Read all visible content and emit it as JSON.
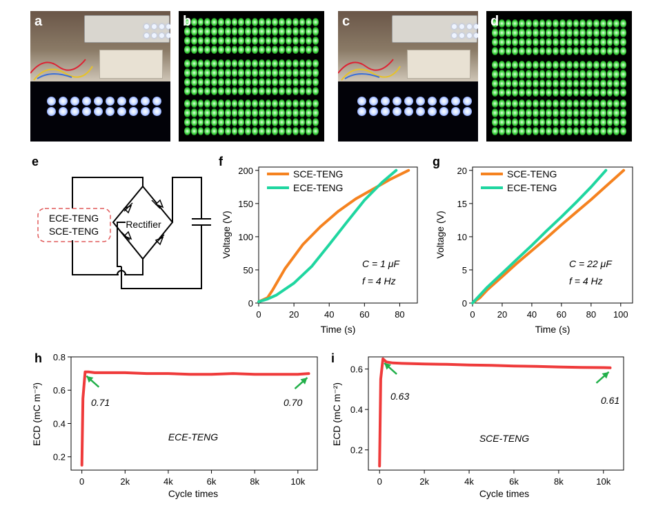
{
  "panels": {
    "a": {
      "label": "a"
    },
    "b": {
      "label": "b"
    },
    "c": {
      "label": "c"
    },
    "d": {
      "label": "d"
    },
    "e": {
      "label": "e"
    },
    "f": {
      "label": "f"
    },
    "g": {
      "label": "g"
    },
    "h": {
      "label": "h"
    },
    "i": {
      "label": "i"
    }
  },
  "circuit": {
    "teng_labels": [
      "ECE-TENG",
      "SCE-TENG"
    ],
    "rectifier_label": "Rectifier"
  },
  "colors": {
    "sce": "#f5821f",
    "ece": "#1fd6a0",
    "ecd": "#ef3b3b",
    "arrow": "#22b04a",
    "dashed_box": "#e05a5a",
    "blue_led": "#d6e4ff",
    "green_led": "#35d235"
  },
  "chart_data": [
    {
      "id": "f",
      "type": "line",
      "xlabel": "Time (s)",
      "ylabel": "Voltage (V)",
      "xlim": [
        0,
        90
      ],
      "ylim": [
        0,
        205
      ],
      "xticks": [
        0,
        20,
        40,
        60,
        80
      ],
      "yticks": [
        0,
        50,
        100,
        150,
        200
      ],
      "legend": "top-left",
      "annotations": [
        "C = 1 μF",
        "f = 4 Hz"
      ],
      "series": [
        {
          "name": "SCE-TENG",
          "color": "#f5821f",
          "x": [
            0,
            5,
            8,
            15,
            25,
            35,
            45,
            55,
            65,
            75,
            85
          ],
          "y": [
            2,
            8,
            20,
            52,
            88,
            115,
            138,
            157,
            172,
            187,
            200
          ]
        },
        {
          "name": "ECE-TENG",
          "color": "#1fd6a0",
          "x": [
            0,
            5,
            10,
            20,
            30,
            40,
            50,
            60,
            70,
            78
          ],
          "y": [
            2,
            6,
            12,
            30,
            55,
            88,
            122,
            155,
            182,
            200
          ]
        }
      ]
    },
    {
      "id": "g",
      "type": "line",
      "xlabel": "Time (s)",
      "ylabel": "Voltage (V)",
      "xlim": [
        0,
        108
      ],
      "ylim": [
        0,
        20.5
      ],
      "xticks": [
        0,
        20,
        40,
        60,
        80,
        100
      ],
      "yticks": [
        0,
        5,
        10,
        15,
        20
      ],
      "legend": "top-left",
      "annotations": [
        "C = 22 μF",
        "f = 4 Hz"
      ],
      "series": [
        {
          "name": "SCE-TENG",
          "color": "#f5821f",
          "x": [
            0,
            5,
            10,
            20,
            30,
            40,
            50,
            60,
            70,
            80,
            90,
            102
          ],
          "y": [
            0,
            0.8,
            2,
            4,
            6,
            7.9,
            9.8,
            11.8,
            13.7,
            15.6,
            17.6,
            20
          ]
        },
        {
          "name": "ECE-TENG",
          "color": "#1fd6a0",
          "x": [
            0,
            5,
            10,
            20,
            30,
            40,
            50,
            60,
            70,
            80,
            90
          ],
          "y": [
            0,
            1.2,
            2.4,
            4.5,
            6.6,
            8.7,
            10.9,
            13.0,
            15.2,
            17.5,
            20
          ]
        }
      ]
    },
    {
      "id": "h",
      "type": "line",
      "xlabel": "Cycle times",
      "ylabel": "ECD (mC m⁻²)",
      "xlim": [
        -500,
        10900
      ],
      "ylim": [
        0.12,
        0.8
      ],
      "xticks": [
        0,
        2000,
        4000,
        6000,
        8000,
        10000
      ],
      "xticklabels": [
        "0",
        "2k",
        "4k",
        "6k",
        "8k",
        "10k"
      ],
      "yticks": [
        0.2,
        0.4,
        0.6,
        0.8
      ],
      "annotations": [
        "0.71",
        "0.70",
        "ECE-TENG"
      ],
      "series": [
        {
          "color": "#ef3b3b",
          "x": [
            0,
            50,
            150,
            300,
            600,
            1000,
            2000,
            3000,
            4000,
            5000,
            6000,
            7000,
            8000,
            9000,
            10000,
            10500
          ],
          "y": [
            0.15,
            0.55,
            0.71,
            0.71,
            0.705,
            0.705,
            0.705,
            0.7,
            0.7,
            0.695,
            0.695,
            0.7,
            0.695,
            0.695,
            0.695,
            0.7
          ]
        }
      ]
    },
    {
      "id": "i",
      "type": "line",
      "xlabel": "Cycle times",
      "ylabel": "ECD (mC m⁻²)",
      "xlim": [
        -500,
        10900
      ],
      "ylim": [
        0.1,
        0.66
      ],
      "xticks": [
        0,
        2000,
        4000,
        6000,
        8000,
        10000
      ],
      "xticklabels": [
        "0",
        "2k",
        "4k",
        "6k",
        "8k",
        "10k"
      ],
      "yticks": [
        0.2,
        0.4,
        0.6
      ],
      "annotations": [
        "0.63",
        "0.61",
        "SCE-TENG"
      ],
      "series": [
        {
          "color": "#ef3b3b",
          "x": [
            0,
            50,
            150,
            300,
            600,
            1000,
            2000,
            3000,
            4000,
            5000,
            6000,
            7000,
            8000,
            9000,
            10000,
            10300
          ],
          "y": [
            0.12,
            0.55,
            0.65,
            0.635,
            0.63,
            0.628,
            0.625,
            0.623,
            0.62,
            0.618,
            0.615,
            0.613,
            0.61,
            0.608,
            0.607,
            0.606
          ]
        }
      ]
    }
  ]
}
